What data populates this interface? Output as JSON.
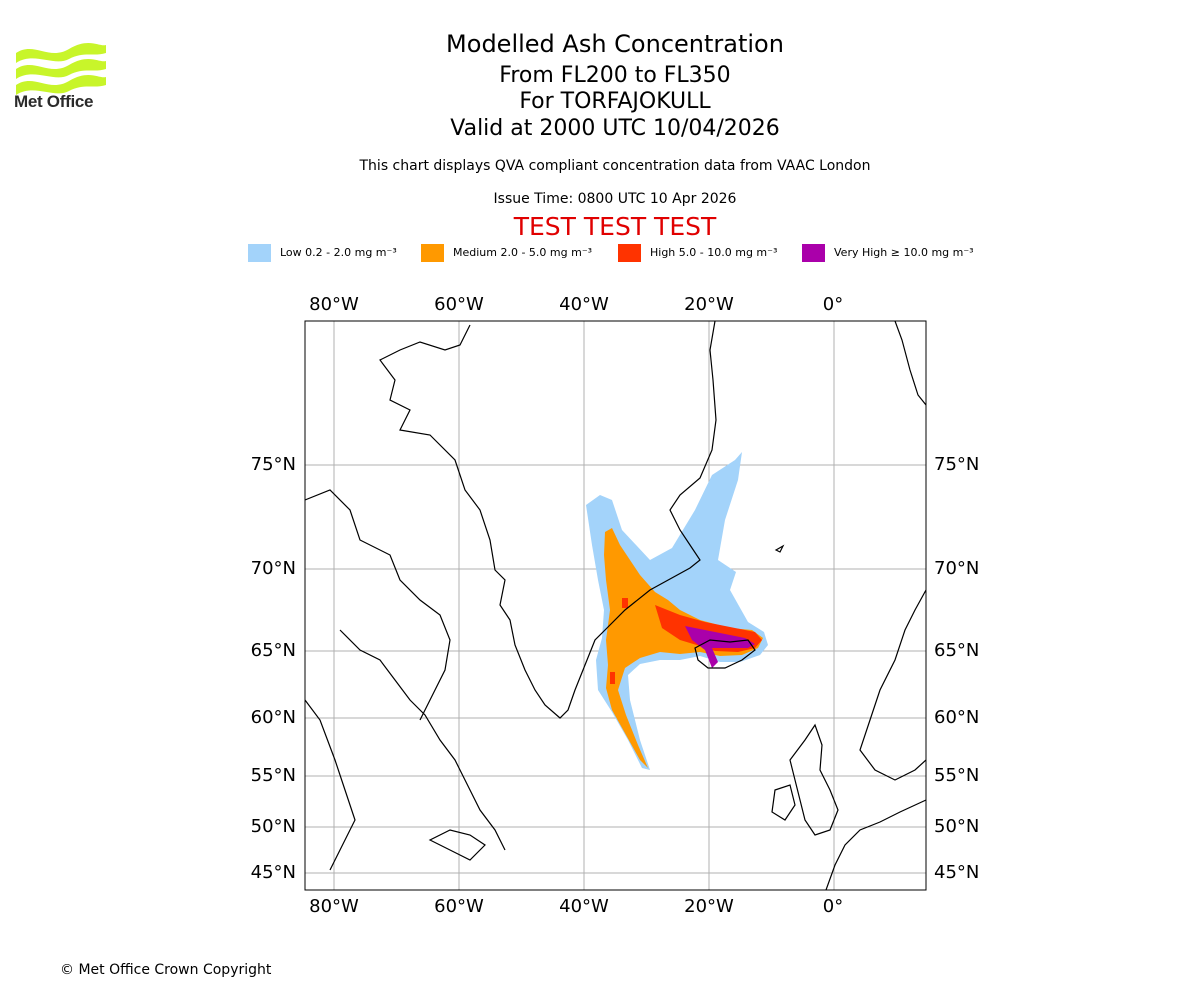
{
  "logo": {
    "name": "Met Office",
    "color": "#c8f52a"
  },
  "title": {
    "main": "Modelled Ash Concentration",
    "levels": "From FL200 to FL350",
    "volcano": "For TORFAJOKULL",
    "valid": "Valid at 2000 UTC 10/04/2026"
  },
  "description": "This chart displays QVA compliant concentration data from VAAC London",
  "issue_time": "Issue Time: 0800 UTC 10 Apr 2026",
  "test_banner": "TEST TEST TEST",
  "legend": [
    {
      "label": "Low 0.2 - 2.0 mg m⁻³",
      "color": "#a3d3fa"
    },
    {
      "label": "Medium 2.0 - 5.0 mg m⁻³",
      "color": "#ff9900"
    },
    {
      "label": "High 5.0 - 10.0 mg m⁻³",
      "color": "#ff3300"
    },
    {
      "label": "Very High ≥ 10.0 mg m⁻³",
      "color": "#aa00aa"
    }
  ],
  "map": {
    "lon_labels": [
      "80°W",
      "60°W",
      "40°W",
      "20°W",
      "0°"
    ],
    "lat_labels": [
      "75°N",
      "70°N",
      "65°N",
      "60°N",
      "55°N",
      "50°N",
      "45°N"
    ],
    "grid_color": "#b0b0b0"
  },
  "footer": "© Met Office Crown Copyright"
}
